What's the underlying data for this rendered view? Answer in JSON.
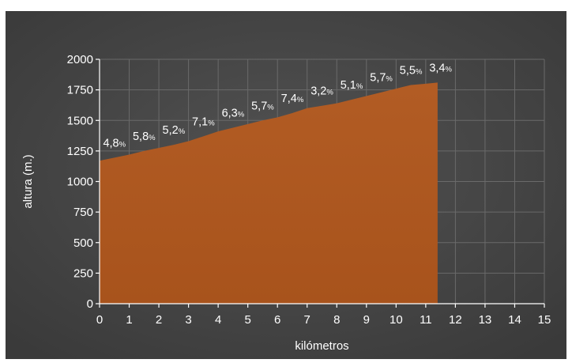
{
  "chart_data": {
    "type": "area",
    "title": "",
    "xlabel": "kilómetros",
    "ylabel": "altura (m.)",
    "xlim": [
      0,
      15
    ],
    "ylim": [
      0,
      2000
    ],
    "x_ticks": [
      "0",
      "1",
      "2",
      "3",
      "4",
      "5",
      "6",
      "7",
      "8",
      "9",
      "10",
      "11",
      "12",
      "13",
      "14",
      "15"
    ],
    "y_ticks": [
      "0",
      "250",
      "500",
      "750",
      "1000",
      "1250",
      "1500",
      "1750",
      "2000"
    ],
    "grid": true,
    "series": [
      {
        "x": [
          0,
          0.5,
          1,
          1.5,
          2,
          2.5,
          3,
          3.5,
          4,
          4.5,
          5,
          5.5,
          6,
          6.5,
          7,
          7.5,
          8,
          8.5,
          9,
          9.5,
          10,
          10.5,
          11,
          11.4
        ],
        "y": [
          1170,
          1195,
          1220,
          1250,
          1275,
          1300,
          1330,
          1370,
          1410,
          1440,
          1470,
          1500,
          1525,
          1560,
          1600,
          1620,
          1640,
          1670,
          1700,
          1730,
          1760,
          1790,
          1800,
          1810
        ]
      }
    ],
    "grade_labels": [
      {
        "km": 0.5,
        "value": "4,8",
        "unit": "%"
      },
      {
        "km": 1.5,
        "value": "5,8",
        "unit": "%"
      },
      {
        "km": 2.5,
        "value": "5,2",
        "unit": "%"
      },
      {
        "km": 3.5,
        "value": "7,1",
        "unit": "%"
      },
      {
        "km": 4.5,
        "value": "6,3",
        "unit": "%"
      },
      {
        "km": 5.5,
        "value": "5,7",
        "unit": "%"
      },
      {
        "km": 6.5,
        "value": "7,4",
        "unit": "%"
      },
      {
        "km": 7.5,
        "value": "3,2",
        "unit": "%"
      },
      {
        "km": 8.5,
        "value": "5,1",
        "unit": "%"
      },
      {
        "km": 9.5,
        "value": "5,7",
        "unit": "%"
      },
      {
        "km": 10.5,
        "value": "5,5",
        "unit": "%"
      },
      {
        "km": 11.5,
        "value": "3,4",
        "unit": "%"
      }
    ],
    "colors": {
      "background": "#474747",
      "fill": "#b05a22",
      "grid": "#6a6a6a",
      "axis": "#ffffff",
      "text": "#ffffff"
    }
  }
}
